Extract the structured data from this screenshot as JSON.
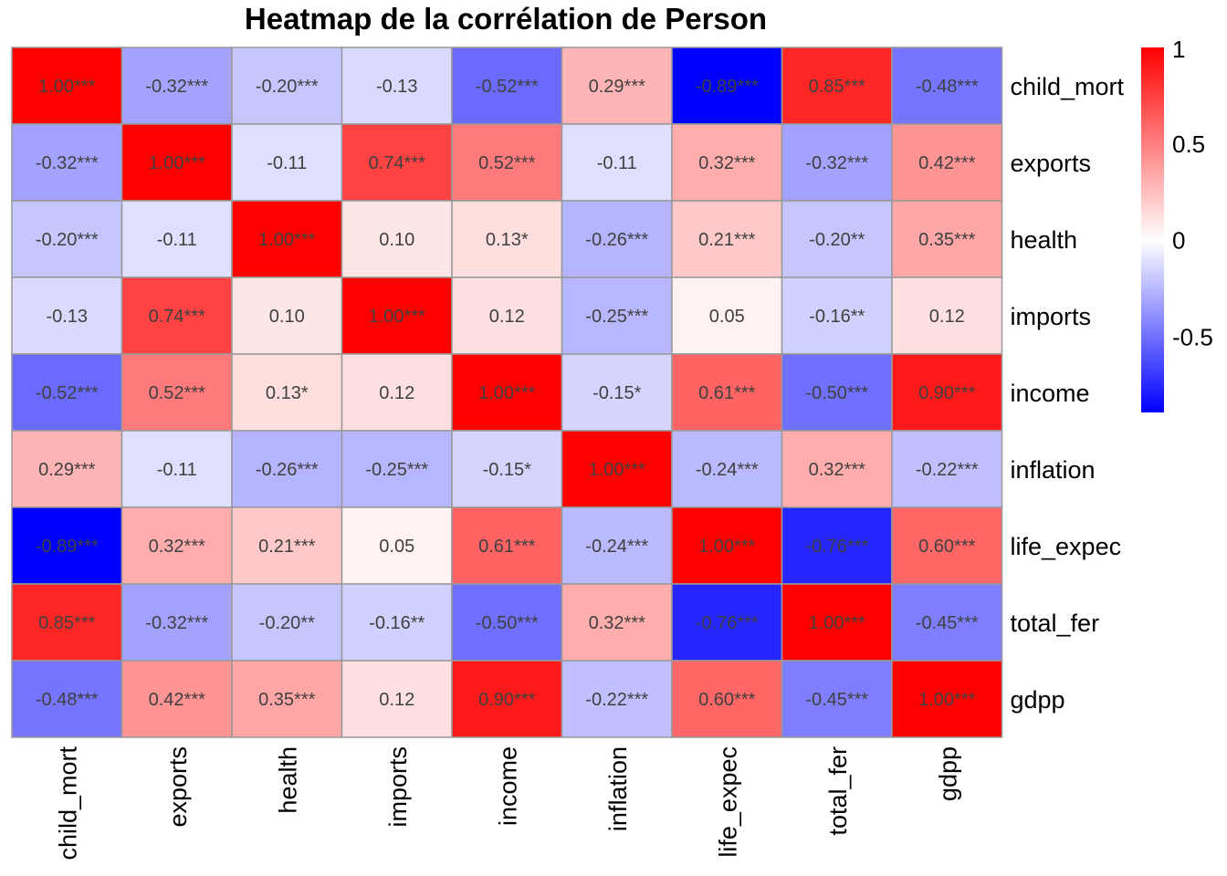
{
  "chart_data": {
    "type": "heatmap",
    "title": "Heatmap de la corrélation de Person",
    "rows": [
      "child_mort",
      "exports",
      "health",
      "imports",
      "income",
      "inflation",
      "life_expec",
      "total_fer",
      "gdpp"
    ],
    "columns": [
      "child_mort",
      "exports",
      "health",
      "imports",
      "income",
      "inflation",
      "life_expec",
      "total_fer",
      "gdpp"
    ],
    "values": [
      [
        1.0,
        -0.32,
        -0.2,
        -0.13,
        -0.52,
        0.29,
        -0.89,
        0.85,
        -0.48
      ],
      [
        -0.32,
        1.0,
        -0.11,
        0.74,
        0.52,
        -0.11,
        0.32,
        -0.32,
        0.42
      ],
      [
        -0.2,
        -0.11,
        1.0,
        0.1,
        0.13,
        -0.26,
        0.21,
        -0.2,
        0.35
      ],
      [
        -0.13,
        0.74,
        0.1,
        1.0,
        0.12,
        -0.25,
        0.05,
        -0.16,
        0.12
      ],
      [
        -0.52,
        0.52,
        0.13,
        0.12,
        1.0,
        -0.15,
        0.61,
        -0.5,
        0.9
      ],
      [
        0.29,
        -0.11,
        -0.26,
        -0.25,
        -0.15,
        1.0,
        -0.24,
        0.32,
        -0.22
      ],
      [
        -0.89,
        0.32,
        0.21,
        0.05,
        0.61,
        -0.24,
        1.0,
        -0.76,
        0.6
      ],
      [
        0.85,
        -0.32,
        -0.2,
        -0.16,
        -0.5,
        0.32,
        -0.76,
        1.0,
        -0.45
      ],
      [
        -0.48,
        0.42,
        0.35,
        0.12,
        0.9,
        -0.22,
        0.6,
        -0.45,
        1.0
      ]
    ],
    "cell_labels": [
      [
        "1.00***",
        "-0.32***",
        "-0.20***",
        "-0.13",
        "-0.52***",
        "0.29***",
        "-0.89***",
        "0.85***",
        "-0.48***"
      ],
      [
        "-0.32***",
        "1.00***",
        "-0.11",
        "0.74***",
        "0.52***",
        "-0.11",
        "0.32***",
        "-0.32***",
        "0.42***"
      ],
      [
        "-0.20***",
        "-0.11",
        "1.00***",
        "0.10",
        "0.13*",
        "-0.26***",
        "0.21***",
        "-0.20**",
        "0.35***"
      ],
      [
        "-0.13",
        "0.74***",
        "0.10",
        "1.00***",
        "0.12",
        "-0.25***",
        "0.05",
        "-0.16**",
        "0.12"
      ],
      [
        "-0.52***",
        "0.52***",
        "0.13*",
        "0.12",
        "1.00***",
        "-0.15*",
        "0.61***",
        "-0.50***",
        "0.90***"
      ],
      [
        "0.29***",
        "-0.11",
        "-0.26***",
        "-0.25***",
        "-0.15*",
        "1.00***",
        "-0.24***",
        "0.32***",
        "-0.22***"
      ],
      [
        "-0.89***",
        "0.32***",
        "0.21***",
        "0.05",
        "0.61***",
        "-0.24***",
        "1.00***",
        "-0.76***",
        "0.60***"
      ],
      [
        "0.85***",
        "-0.32***",
        "-0.20**",
        "-0.16**",
        "-0.50***",
        "0.32***",
        "-0.76***",
        "1.00***",
        "-0.45***"
      ],
      [
        "-0.48***",
        "0.42***",
        "0.35***",
        "0.12",
        "0.90***",
        "-0.22***",
        "0.60***",
        "-0.45***",
        "1.00***"
      ]
    ],
    "color_scale": {
      "low": "#0000ff",
      "mid": "#ffffff",
      "high": "#ff0000",
      "range": [
        -0.89,
        1.0
      ],
      "ticks": [
        1,
        0.5,
        0,
        -0.5
      ],
      "tick_labels": [
        "1",
        "0.5",
        "0",
        "-0.5"
      ]
    },
    "legend_position": "right",
    "cell_border_color": "#999999",
    "label_color": "#404040"
  }
}
